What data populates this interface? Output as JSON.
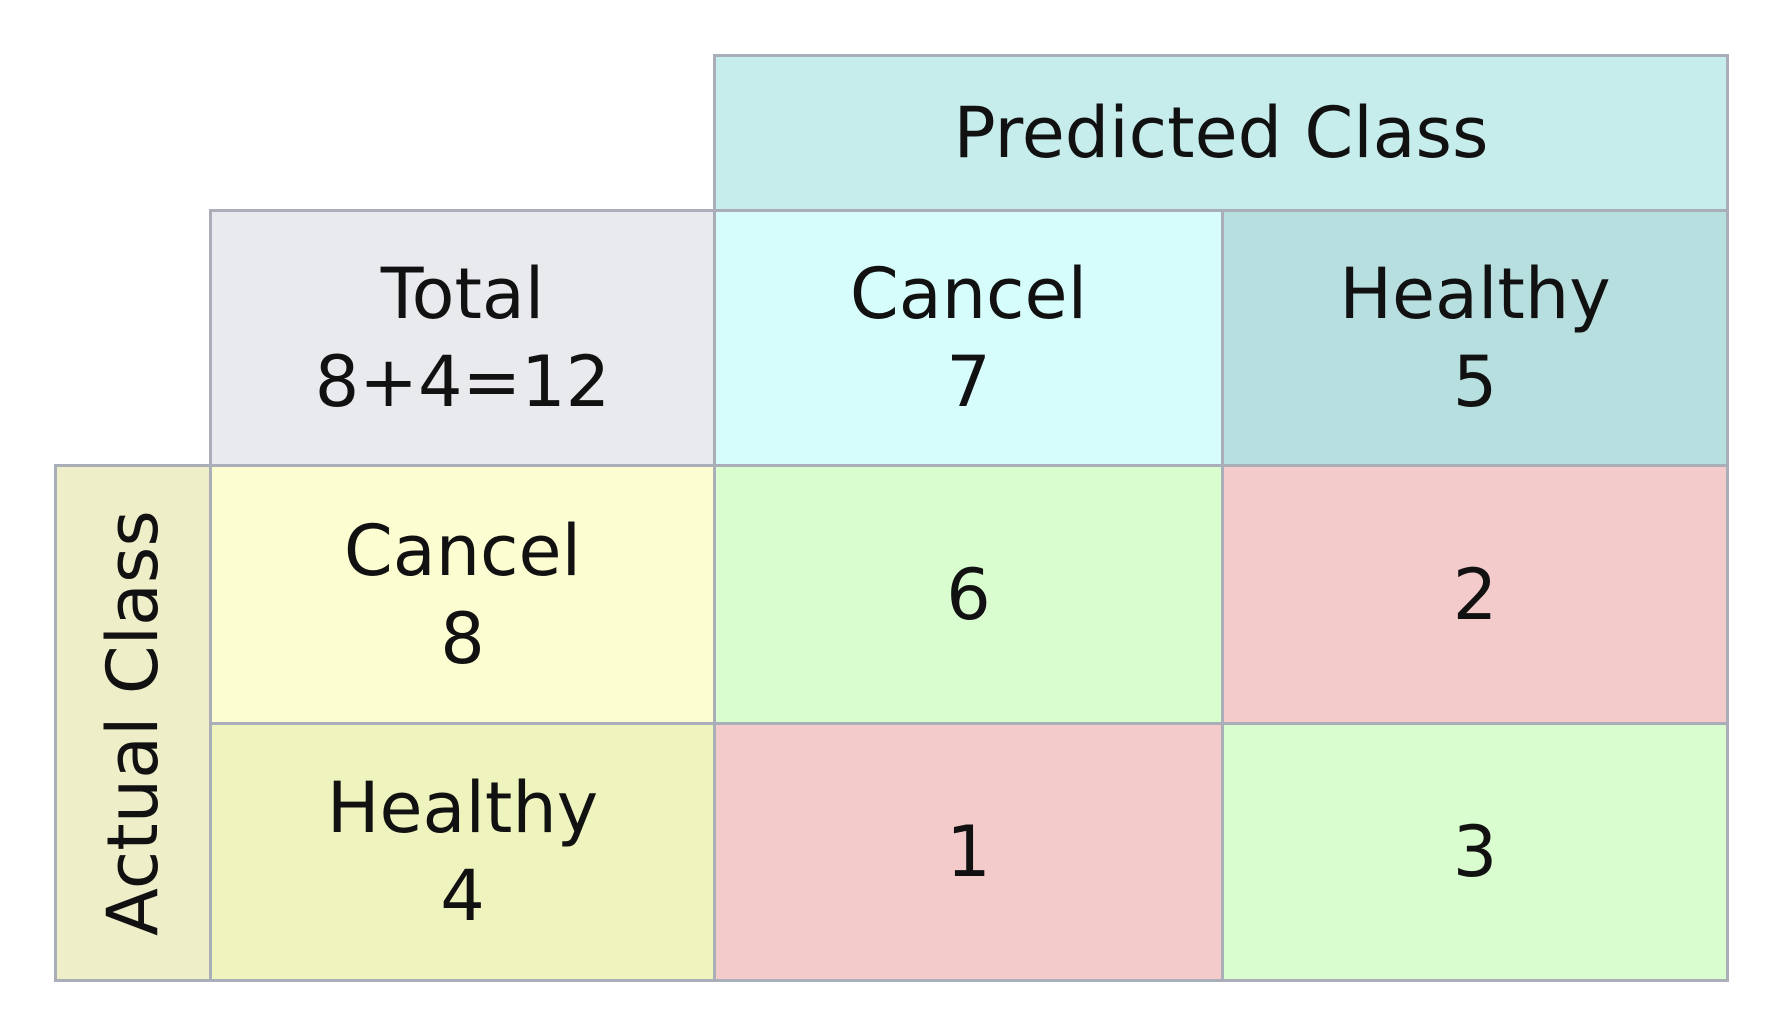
{
  "header": {
    "predicted_class": "Predicted Class",
    "actual_class": "Actual Class"
  },
  "total": {
    "label": "Total",
    "formula": "8+4=12"
  },
  "predicted": [
    {
      "label": "Cancel",
      "count": "7"
    },
    {
      "label": "Healthy",
      "count": "5"
    }
  ],
  "actual": [
    {
      "label": "Cancel",
      "count": "8"
    },
    {
      "label": "Healthy",
      "count": "4"
    }
  ],
  "matrix": [
    [
      "6",
      "2"
    ],
    [
      "1",
      "3"
    ]
  ],
  "colors": {
    "predicted_header": "#c7ecec",
    "total": "#e9eaee",
    "predicted_cancel": "#d6fcfc",
    "predicted_healthy": "#b8dfdf",
    "actual_header": "#eeeec8",
    "actual_cancel": "#fdfdd2",
    "actual_healthy": "#eff3bd",
    "correct": "#dafdd0",
    "incorrect": "#f4cbcb",
    "border": "#a9aeb8"
  }
}
